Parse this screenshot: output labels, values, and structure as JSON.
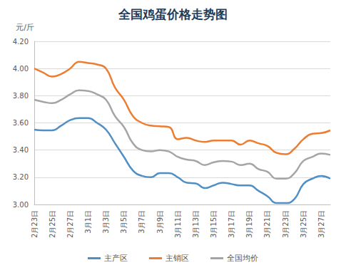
{
  "chart_data": {
    "type": "line",
    "title": "全国鸡蛋价格走势图",
    "y_label": "元/斤",
    "categories": [
      "2月23日",
      null,
      "2月25日",
      null,
      "2月27日",
      null,
      "3月1日",
      null,
      "3月3日",
      null,
      "3月5日",
      null,
      "3月7日",
      null,
      "3月9日",
      null,
      "3月11日",
      null,
      "3月13日",
      null,
      "3月15日",
      null,
      "3月17日",
      null,
      "3月19日",
      null,
      "3月21日",
      null,
      "3月23日",
      null,
      "3月25日",
      null,
      "3月27日",
      null
    ],
    "series": [
      {
        "name": "主产区",
        "color": "#4f8fc6",
        "values": [
          3.55,
          3.545,
          3.545,
          3.58,
          3.62,
          3.635,
          3.635,
          3.6,
          3.55,
          3.45,
          3.35,
          3.25,
          3.21,
          3.2,
          3.23,
          3.23,
          3.2,
          3.16,
          3.155,
          3.12,
          3.14,
          3.16,
          3.15,
          3.14,
          3.14,
          3.1,
          3.06,
          3.01,
          3.01,
          3.04,
          3.15,
          3.19,
          3.21,
          3.19
        ]
      },
      {
        "name": "主销区",
        "color": "#ed7d31",
        "values": [
          4.0,
          3.97,
          3.94,
          3.96,
          4.0,
          4.05,
          4.04,
          4.03,
          4.0,
          3.86,
          3.77,
          3.65,
          3.6,
          3.58,
          3.575,
          3.57,
          3.48,
          3.49,
          3.47,
          3.46,
          3.47,
          3.47,
          3.47,
          3.44,
          3.47,
          3.45,
          3.43,
          3.38,
          3.37,
          3.41,
          3.48,
          3.52,
          3.525,
          3.545
        ]
      },
      {
        "name": "全国均价",
        "color": "#a5a5a5",
        "values": [
          3.77,
          3.755,
          3.745,
          3.77,
          3.81,
          3.84,
          3.835,
          3.81,
          3.77,
          3.65,
          3.57,
          3.45,
          3.4,
          3.39,
          3.4,
          3.39,
          3.35,
          3.33,
          3.32,
          3.29,
          3.31,
          3.32,
          3.315,
          3.29,
          3.3,
          3.26,
          3.24,
          3.19,
          3.19,
          3.23,
          3.32,
          3.35,
          3.375,
          3.365
        ]
      }
    ],
    "ylim": [
      3.0,
      4.2
    ],
    "yticks": [
      {
        "value": 3.0,
        "label": "3.00"
      },
      {
        "value": 3.2,
        "label": "3.20"
      },
      {
        "value": 3.4,
        "label": "3.40"
      },
      {
        "value": 3.6,
        "label": "3.60"
      },
      {
        "value": 3.8,
        "label": "3.80"
      },
      {
        "value": 4.0,
        "label": "4.00"
      },
      {
        "value": 4.2,
        "label": "4.20"
      }
    ],
    "grid": true,
    "legend": "bottom"
  }
}
